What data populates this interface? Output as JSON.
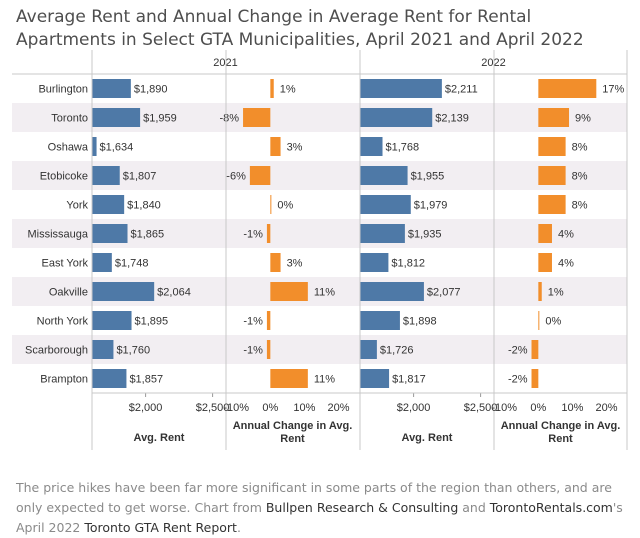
{
  "title": "Average Rent and Annual Change in Average Rent for Rental Apartments in Select GTA Municipalities, April 2021 and April 2022",
  "colors": {
    "rent": "#4e79a7",
    "change": "#f28e2b",
    "text": "#333333",
    "grid": "#e3e3e3",
    "band": "#f2eef2"
  },
  "chart_data": {
    "type": "bar",
    "categories": [
      "Burlington",
      "Toronto",
      "Oshawa",
      "Etobicoke",
      "York",
      "Mississauga",
      "East York",
      "Oakville",
      "North York",
      "Scarborough",
      "Brampton"
    ],
    "panels": [
      {
        "year": "2021",
        "rent": {
          "labels": [
            "$1,890",
            "$1,959",
            "$1,634",
            "$1,807",
            "$1,840",
            "$1,865",
            "$1,748",
            "$2,064",
            "$1,895",
            "$1,760",
            "$1,857"
          ],
          "values": [
            1890,
            1959,
            1634,
            1807,
            1840,
            1865,
            1748,
            2064,
            1895,
            1760,
            1857
          ],
          "xlim": [
            1600,
            2600
          ],
          "ticks": [
            {
              "value": 2000,
              "label": "$2,000"
            },
            {
              "value": 2500,
              "label": "$2,500"
            }
          ],
          "axis_title": "Avg. Rent"
        },
        "change": {
          "labels": [
            "1%",
            "-8%",
            "3%",
            "-6%",
            "0%",
            "-1%",
            "3%",
            "11%",
            "-1%",
            "-1%",
            "11%"
          ],
          "values": [
            1,
            -8,
            3,
            -6,
            0.3,
            -1,
            3,
            11,
            -1,
            -1,
            11
          ],
          "xlim": [
            -13,
            26
          ],
          "ticks": [
            {
              "value": -10,
              "label": "-10%"
            },
            {
              "value": 0,
              "label": "0%"
            },
            {
              "value": 10,
              "label": "10%"
            },
            {
              "value": 20,
              "label": "20%"
            }
          ],
          "axis_title": [
            "Annual Change in Avg.",
            "Rent"
          ]
        }
      },
      {
        "year": "2022",
        "rent": {
          "labels": [
            "$2,211",
            "$2,139",
            "$1,768",
            "$1,955",
            "$1,979",
            "$1,935",
            "$1,812",
            "$2,077",
            "$1,898",
            "$1,726",
            "$1,817"
          ],
          "values": [
            2211,
            2139,
            1768,
            1955,
            1979,
            1935,
            1812,
            2077,
            1898,
            1726,
            1817
          ],
          "xlim": [
            1600,
            2600
          ],
          "ticks": [
            {
              "value": 2000,
              "label": "$2,000"
            },
            {
              "value": 2500,
              "label": "$2,500"
            }
          ],
          "axis_title": "Avg. Rent"
        },
        "change": {
          "labels": [
            "17%",
            "9%",
            "8%",
            "8%",
            "8%",
            "4%",
            "4%",
            "1%",
            "0%",
            "-2%",
            "-2%"
          ],
          "values": [
            17,
            9,
            8,
            8,
            8,
            4,
            4,
            1,
            0,
            -2,
            -2
          ],
          "xlim": [
            -13,
            26
          ],
          "ticks": [
            {
              "value": -10,
              "label": "-10%"
            },
            {
              "value": 0,
              "label": "0%"
            },
            {
              "value": 10,
              "label": "10%"
            },
            {
              "value": 20,
              "label": "20%"
            }
          ],
          "axis_title": [
            "Annual Change in Avg.",
            "Rent"
          ]
        }
      }
    ]
  },
  "caption": {
    "text1": "The price hikes have been far more significant in some parts of the region than others, and are only expected to get worse. Chart from ",
    "link1": "Bullpen Research & Consulting",
    "text2": " and ",
    "link2": "TorontoRentals.com",
    "text3": "'s April 2022 ",
    "link3": "Toronto GTA Rent Report",
    "text4": "."
  }
}
